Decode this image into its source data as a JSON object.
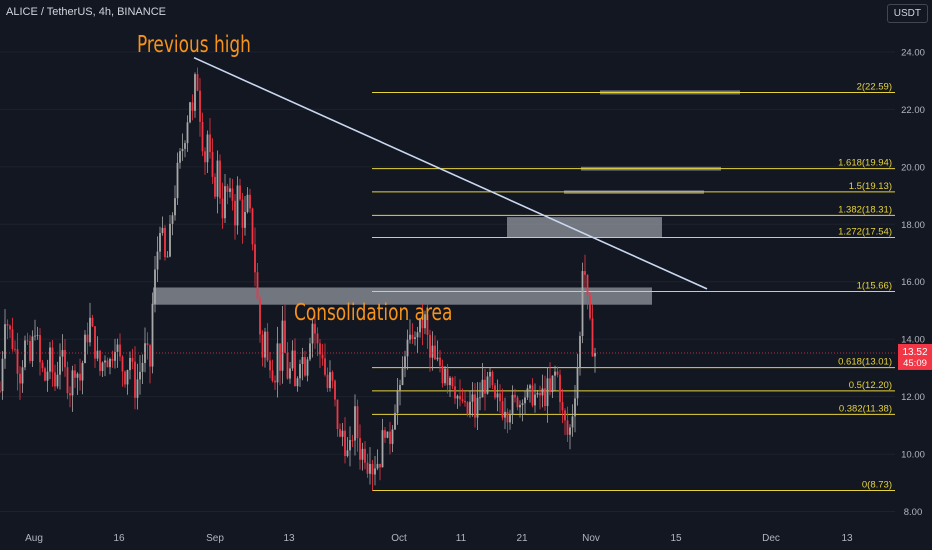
{
  "header": {
    "symbol": "ALICE / TetherUS, 4h, BINANCE",
    "unit": "USDT"
  },
  "chart_data": {
    "type": "candlestick",
    "symbol": "ALICE / TetherUS",
    "interval": "4h",
    "exchange": "BINANCE",
    "yaxis_unit": "USDT",
    "ylim": [
      7.6,
      25.6
    ],
    "yticks": [
      8.0,
      10.0,
      12.0,
      14.0,
      16.0,
      18.0,
      20.0,
      22.0,
      24.0
    ],
    "xticks": [
      "Aug",
      "16",
      "Sep",
      "13",
      "Oct",
      "11",
      "21",
      "Nov",
      "15",
      "Dec",
      "13"
    ],
    "current_price": {
      "value": "13.52",
      "countdown": "45:09"
    },
    "price_path": [
      [
        0,
        12.2
      ],
      [
        5,
        14.9
      ],
      [
        10,
        14.2
      ],
      [
        15,
        13.6
      ],
      [
        20,
        12.8
      ],
      [
        25,
        13.8
      ],
      [
        30,
        13.2
      ],
      [
        35,
        14.5
      ],
      [
        40,
        13.1
      ],
      [
        45,
        12.6
      ],
      [
        50,
        13.3
      ],
      [
        55,
        12.4
      ],
      [
        60,
        13.6
      ],
      [
        65,
        12.8
      ],
      [
        70,
        12.3
      ],
      [
        75,
        13.1
      ],
      [
        80,
        12.6
      ],
      [
        85,
        13.8
      ],
      [
        90,
        14.6
      ],
      [
        95,
        13.7
      ],
      [
        100,
        12.9
      ],
      [
        105,
        13.5
      ],
      [
        110,
        13.2
      ],
      [
        115,
        14.0
      ],
      [
        120,
        13.2
      ],
      [
        125,
        12.8
      ],
      [
        130,
        13.4
      ],
      [
        135,
        12.3
      ],
      [
        140,
        12.9
      ],
      [
        145,
        13.6
      ],
      [
        150,
        13.1
      ],
      [
        153,
        15.6
      ],
      [
        156,
        16.5
      ],
      [
        160,
        18.1
      ],
      [
        163,
        17.3
      ],
      [
        166,
        16.4
      ],
      [
        170,
        17.6
      ],
      [
        174,
        18.9
      ],
      [
        178,
        19.9
      ],
      [
        182,
        20.6
      ],
      [
        186,
        21.4
      ],
      [
        190,
        22.4
      ],
      [
        193,
        21.6
      ],
      [
        196,
        23.5
      ],
      [
        199,
        22.3
      ],
      [
        202,
        21.1
      ],
      [
        205,
        20.3
      ],
      [
        208,
        21.3
      ],
      [
        211,
        19.6
      ],
      [
        214,
        18.9
      ],
      [
        217,
        20.2
      ],
      [
        220,
        19.1
      ],
      [
        223,
        18.4
      ],
      [
        226,
        19.4
      ],
      [
        229,
        18.7
      ],
      [
        232,
        19.1
      ],
      [
        235,
        18.3
      ],
      [
        238,
        19.3
      ],
      [
        241,
        18.5
      ],
      [
        244,
        17.9
      ],
      [
        247,
        18.8
      ],
      [
        250,
        18.2
      ],
      [
        253,
        17.4
      ],
      [
        256,
        16.0
      ],
      [
        259,
        14.6
      ],
      [
        262,
        13.4
      ],
      [
        265,
        14.2
      ],
      [
        268,
        12.9
      ],
      [
        271,
        13.6
      ],
      [
        274,
        12.4
      ],
      [
        277,
        13.8
      ],
      [
        280,
        13.2
      ],
      [
        283,
        14.4
      ],
      [
        286,
        13.0
      ],
      [
        289,
        12.6
      ],
      [
        292,
        13.4
      ],
      [
        295,
        12.2
      ],
      [
        298,
        13.0
      ],
      [
        301,
        13.8
      ],
      [
        304,
        12.9
      ],
      [
        307,
        13.5
      ],
      [
        310,
        14.2
      ],
      [
        313,
        14.7
      ],
      [
        316,
        14.0
      ],
      [
        319,
        13.4
      ],
      [
        322,
        13.7
      ],
      [
        325,
        12.8
      ],
      [
        328,
        12.2
      ],
      [
        331,
        12.8
      ],
      [
        334,
        11.9
      ],
      [
        337,
        11.2
      ],
      [
        340,
        10.4
      ],
      [
        343,
        10.9
      ],
      [
        346,
        10.1
      ],
      [
        349,
        9.8
      ],
      [
        352,
        10.6
      ],
      [
        355,
        11.3
      ],
      [
        358,
        10.5
      ],
      [
        361,
        9.9
      ],
      [
        364,
        10.3
      ],
      [
        367,
        9.6
      ],
      [
        370,
        10.1
      ],
      [
        373,
        9.4
      ],
      [
        376,
        9.9
      ],
      [
        379,
        9.6
      ],
      [
        382,
        10.4
      ],
      [
        385,
        11.0
      ],
      [
        388,
        10.2
      ],
      [
        391,
        10.8
      ],
      [
        394,
        11.6
      ],
      [
        397,
        12.2
      ],
      [
        400,
        12.0
      ],
      [
        403,
        13.0
      ],
      [
        406,
        14.1
      ],
      [
        409,
        13.4
      ],
      [
        412,
        14.4
      ],
      [
        415,
        13.8
      ],
      [
        418,
        14.6
      ],
      [
        421,
        14.2
      ],
      [
        424,
        14.9
      ],
      [
        427,
        14.1
      ],
      [
        430,
        13.3
      ],
      [
        433,
        13.6
      ],
      [
        436,
        12.9
      ],
      [
        439,
        13.3
      ],
      [
        442,
        12.7
      ],
      [
        445,
        13.2
      ],
      [
        448,
        12.6
      ],
      [
        451,
        12.9
      ],
      [
        454,
        12.4
      ],
      [
        457,
        12.1
      ],
      [
        460,
        11.6
      ],
      [
        463,
        11.9
      ],
      [
        466,
        11.2
      ],
      [
        469,
        11.6
      ],
      [
        472,
        11.9
      ],
      [
        475,
        11.4
      ],
      [
        478,
        11.8
      ],
      [
        481,
        12.2
      ],
      [
        484,
        12.6
      ],
      [
        487,
        12.2
      ],
      [
        490,
        12.6
      ],
      [
        493,
        11.9
      ],
      [
        496,
        11.6
      ],
      [
        499,
        12.0
      ],
      [
        502,
        11.6
      ],
      [
        505,
        11.8
      ],
      [
        508,
        11.5
      ],
      [
        511,
        11.8
      ],
      [
        514,
        11.6
      ],
      [
        517,
        12.0
      ],
      [
        520,
        11.8
      ],
      [
        523,
        12.3
      ],
      [
        526,
        12.0
      ],
      [
        529,
        11.9
      ],
      [
        532,
        12.1
      ],
      [
        535,
        12.0
      ],
      [
        538,
        11.7
      ],
      [
        541,
        12.2
      ],
      [
        544,
        11.9
      ],
      [
        547,
        12.3
      ],
      [
        550,
        12.0
      ],
      [
        553,
        12.6
      ],
      [
        556,
        12.9
      ],
      [
        559,
        12.5
      ],
      [
        562,
        11.4
      ],
      [
        565,
        11.0
      ],
      [
        568,
        10.6
      ],
      [
        571,
        11.0
      ],
      [
        574,
        12.0
      ],
      [
        577,
        12.9
      ],
      [
        580,
        14.0
      ],
      [
        583,
        17.2
      ],
      [
        586,
        15.8
      ],
      [
        589,
        14.5
      ],
      [
        592,
        13.9
      ],
      [
        595,
        13.52
      ]
    ],
    "fib_levels": [
      {
        "label": "0(8.73)",
        "value": 8.73
      },
      {
        "label": "0.382(11.38)",
        "value": 11.38
      },
      {
        "label": "0.5(12.20)",
        "value": 12.2
      },
      {
        "label": "0.618(13.01)",
        "value": 13.01
      },
      {
        "label": "1(15.66)",
        "value": 15.66
      },
      {
        "label": "1.272(17.54)",
        "value": 17.54
      },
      {
        "label": "1.382(18.31)",
        "value": 18.31
      },
      {
        "label": "1.5(19.13)",
        "value": 19.13
      },
      {
        "label": "1.618(19.94)",
        "value": 19.94
      },
      {
        "label": "2(22.59)",
        "value": 22.59
      }
    ],
    "annotations": [
      {
        "text": "Previous high",
        "color": "#f7931a"
      },
      {
        "text": "Consolidation area",
        "color": "#f7931a"
      }
    ],
    "trendline": {
      "from": [
        194,
        23.8
      ],
      "to": [
        707,
        15.75
      ],
      "color": "#c9d8f0"
    },
    "zones": [
      {
        "name": "consolidation-zone",
        "x": [
          153,
          652
        ],
        "y": [
          15.2,
          15.8
        ]
      },
      {
        "name": "resistance-zone",
        "x": [
          507,
          662
        ],
        "y": [
          17.54,
          18.25
        ]
      },
      {
        "name": "target-bar-1",
        "x": [
          564,
          704
        ],
        "y": [
          19.06,
          19.18
        ]
      },
      {
        "name": "target-bar-2",
        "x": [
          581,
          721
        ],
        "y": [
          19.87,
          20.0
        ]
      },
      {
        "name": "target-bar-3",
        "x": [
          600,
          740
        ],
        "y": [
          22.52,
          22.66
        ]
      }
    ],
    "colors": {
      "background": "#131722",
      "up_candle": "#a8a8a8",
      "down_candle": "#f23645",
      "fib_line": "#e6d33c",
      "price_line": "#f23645",
      "axis_text": "#b2b5be",
      "zone": "#b2b5be"
    }
  }
}
